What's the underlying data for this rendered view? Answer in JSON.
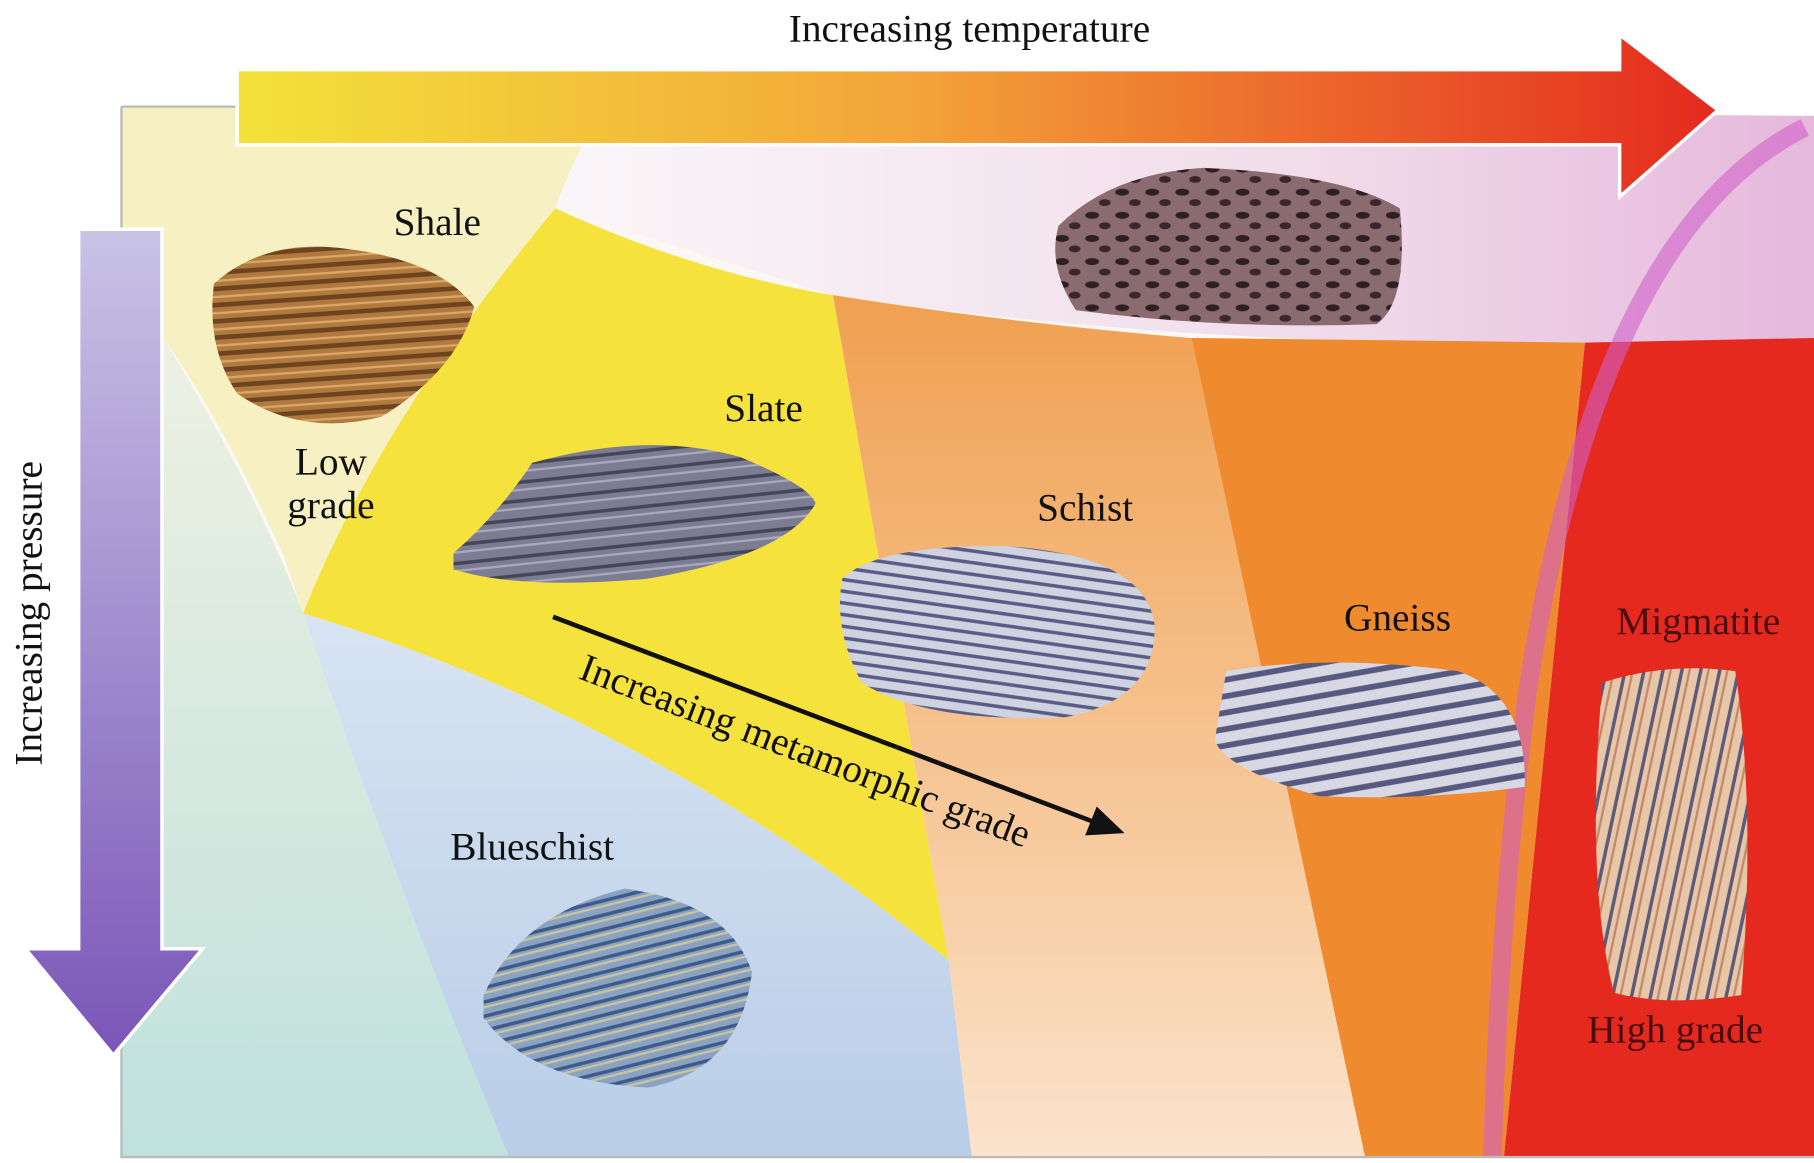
{
  "arrows": {
    "temperature": "Increasing temperature",
    "pressure": "Increasing pressure",
    "grade": "Increasing metamorphic grade"
  },
  "rocks": {
    "shale": "Shale",
    "slate": "Slate",
    "schist": "Schist",
    "gneiss": "Gneiss",
    "migmatite": "Migmatite",
    "blueschist": "Blueschist"
  },
  "grades": {
    "low": [
      "Low",
      "grade"
    ],
    "high": "High grade"
  }
}
